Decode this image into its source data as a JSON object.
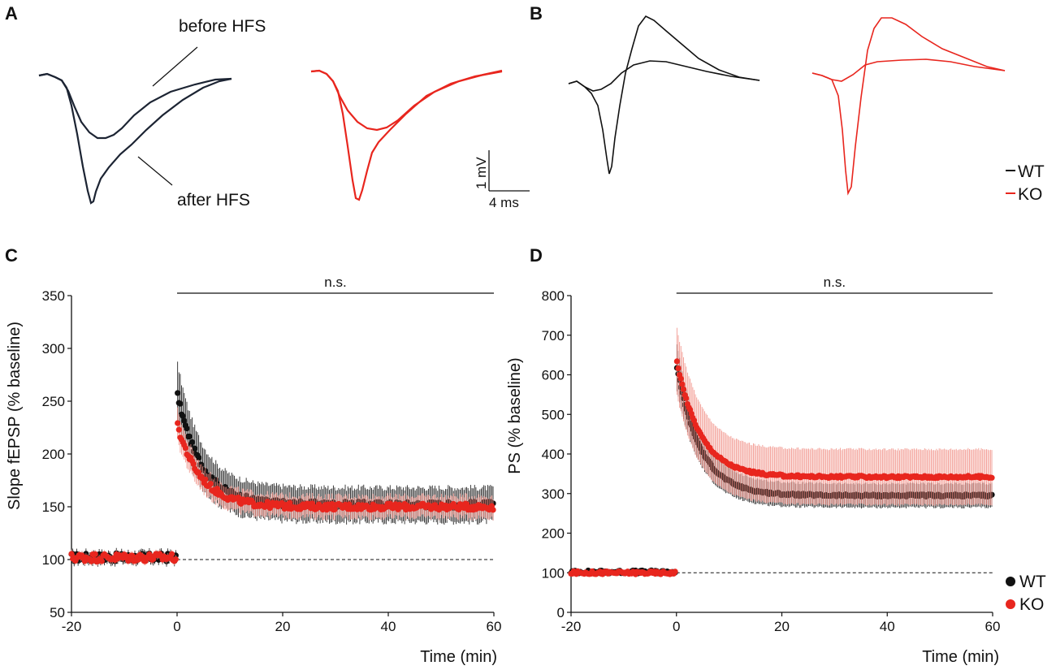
{
  "colors": {
    "wt": "#111111",
    "ko": "#e8261e",
    "ko_err": "#f08a80"
  },
  "panels": {
    "A": {
      "label": "A",
      "before_label": "before HFS",
      "after_label": "after HFS"
    },
    "B": {
      "label": "B"
    },
    "C": {
      "label": "C"
    },
    "D": {
      "label": "D"
    }
  },
  "scale_bar": {
    "vertical": "1 mV",
    "horizontal": "4 ms"
  },
  "legend_traces": [
    {
      "name": "WT",
      "color": "#111111"
    },
    {
      "name": "KO",
      "color": "#e8261e"
    }
  ],
  "chart_data": [
    {
      "id": "C",
      "type": "scatter",
      "title": "",
      "xlabel": "Time (min)",
      "ylabel": "Slope fEPSP (% baseline)",
      "xlim": [
        -20,
        60
      ],
      "ylim": [
        50,
        350
      ],
      "xticks": [
        "-20",
        "0",
        "20",
        "40",
        "60"
      ],
      "yticks": [
        "50",
        "100",
        "150",
        "200",
        "250",
        "300",
        "350"
      ],
      "baseline": 100,
      "significance": "n.s.",
      "sig_range": [
        0,
        60
      ],
      "series": [
        {
          "name": "WT",
          "baseline_mean": 102,
          "peak": 258,
          "plateau": 152,
          "err_baseline": 5,
          "err_post": 16,
          "err_peak": 30
        },
        {
          "name": "KO",
          "baseline_mean": 102,
          "peak": 228,
          "plateau": 150,
          "err_baseline": 4,
          "err_post": 10,
          "err_peak": 15
        }
      ]
    },
    {
      "id": "D",
      "type": "scatter",
      "title": "",
      "xlabel": "Time (min)",
      "ylabel": "PS (% baseline)",
      "xlim": [
        -20,
        60
      ],
      "ylim": [
        0,
        800
      ],
      "xticks": [
        "-20",
        "0",
        "20",
        "40",
        "60"
      ],
      "yticks": [
        "0",
        "100",
        "200",
        "300",
        "400",
        "500",
        "600",
        "700",
        "800"
      ],
      "baseline": 100,
      "significance": "n.s.",
      "sig_range": [
        0,
        60
      ],
      "legend": [
        "WT",
        "KO"
      ],
      "series": [
        {
          "name": "WT",
          "baseline_mean": 102,
          "peak": 625,
          "plateau": 295,
          "err_baseline": 6,
          "err_post": 30,
          "err_peak": 60
        },
        {
          "name": "KO",
          "baseline_mean": 100,
          "peak": 640,
          "plateau": 342,
          "err_baseline": 6,
          "err_post": 70,
          "err_peak": 85
        }
      ]
    }
  ]
}
